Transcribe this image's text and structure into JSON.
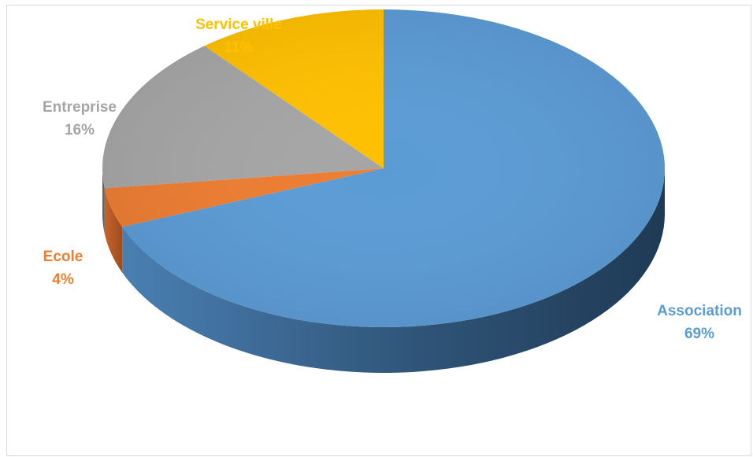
{
  "chart_data": {
    "type": "pie",
    "title": "",
    "start_angle_deg": 0,
    "direction": "clockwise",
    "three_d": true,
    "slices": [
      {
        "name": "Association",
        "value": 69,
        "label": "69%",
        "color": "#5B9BD5"
      },
      {
        "name": "Ecole",
        "value": 4,
        "label": "4%",
        "color": "#ED7D31"
      },
      {
        "name": "Entreprise",
        "value": 16,
        "label": "16%",
        "color": "#A5A5A5"
      },
      {
        "name": "Service ville",
        "value": 11,
        "label": "11%",
        "color": "#FFC000"
      }
    ],
    "legend": "none",
    "data_labels": "outside, category name and percent"
  }
}
